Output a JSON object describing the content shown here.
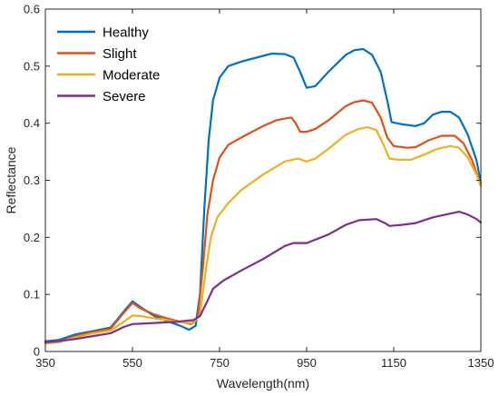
{
  "chart_data": {
    "type": "line",
    "xlabel": "Wavelength(nm)",
    "ylabel": "Reflectance",
    "xlim": [
      350,
      1350
    ],
    "ylim": [
      0,
      0.6
    ],
    "x_ticks": [
      350,
      550,
      750,
      950,
      1150,
      1350
    ],
    "y_ticks": [
      0,
      0.1,
      0.2,
      0.3,
      0.4,
      0.5,
      0.6
    ],
    "grid": false,
    "legend_position": "top-left",
    "series": [
      {
        "name": "Healthy",
        "color": "#0072BD",
        "points": [
          [
            350,
            0.018
          ],
          [
            380,
            0.02
          ],
          [
            420,
            0.03
          ],
          [
            460,
            0.036
          ],
          [
            500,
            0.042
          ],
          [
            530,
            0.07
          ],
          [
            550,
            0.088
          ],
          [
            570,
            0.077
          ],
          [
            600,
            0.062
          ],
          [
            630,
            0.053
          ],
          [
            660,
            0.045
          ],
          [
            680,
            0.038
          ],
          [
            695,
            0.045
          ],
          [
            705,
            0.1
          ],
          [
            715,
            0.25
          ],
          [
            725,
            0.37
          ],
          [
            735,
            0.44
          ],
          [
            750,
            0.48
          ],
          [
            770,
            0.5
          ],
          [
            800,
            0.508
          ],
          [
            850,
            0.518
          ],
          [
            870,
            0.522
          ],
          [
            900,
            0.521
          ],
          [
            920,
            0.515
          ],
          [
            935,
            0.49
          ],
          [
            950,
            0.462
          ],
          [
            970,
            0.465
          ],
          [
            1000,
            0.49
          ],
          [
            1040,
            0.52
          ],
          [
            1060,
            0.528
          ],
          [
            1080,
            0.53
          ],
          [
            1100,
            0.52
          ],
          [
            1120,
            0.49
          ],
          [
            1135,
            0.44
          ],
          [
            1145,
            0.402
          ],
          [
            1170,
            0.398
          ],
          [
            1200,
            0.395
          ],
          [
            1220,
            0.4
          ],
          [
            1240,
            0.415
          ],
          [
            1260,
            0.42
          ],
          [
            1280,
            0.42
          ],
          [
            1300,
            0.41
          ],
          [
            1320,
            0.38
          ],
          [
            1340,
            0.335
          ],
          [
            1350,
            0.295
          ]
        ]
      },
      {
        "name": "Slight",
        "color": "#D95319",
        "points": [
          [
            350,
            0.015
          ],
          [
            380,
            0.017
          ],
          [
            420,
            0.027
          ],
          [
            460,
            0.034
          ],
          [
            500,
            0.04
          ],
          [
            530,
            0.068
          ],
          [
            550,
            0.085
          ],
          [
            570,
            0.075
          ],
          [
            600,
            0.065
          ],
          [
            630,
            0.058
          ],
          [
            660,
            0.052
          ],
          [
            685,
            0.048
          ],
          [
            700,
            0.06
          ],
          [
            712,
            0.15
          ],
          [
            722,
            0.24
          ],
          [
            735,
            0.3
          ],
          [
            750,
            0.34
          ],
          [
            770,
            0.362
          ],
          [
            800,
            0.375
          ],
          [
            850,
            0.395
          ],
          [
            880,
            0.405
          ],
          [
            900,
            0.408
          ],
          [
            915,
            0.41
          ],
          [
            925,
            0.4
          ],
          [
            935,
            0.385
          ],
          [
            950,
            0.385
          ],
          [
            970,
            0.39
          ],
          [
            1000,
            0.405
          ],
          [
            1040,
            0.43
          ],
          [
            1060,
            0.437
          ],
          [
            1080,
            0.44
          ],
          [
            1100,
            0.436
          ],
          [
            1120,
            0.41
          ],
          [
            1135,
            0.375
          ],
          [
            1150,
            0.36
          ],
          [
            1180,
            0.357
          ],
          [
            1200,
            0.358
          ],
          [
            1230,
            0.37
          ],
          [
            1260,
            0.378
          ],
          [
            1290,
            0.378
          ],
          [
            1310,
            0.365
          ],
          [
            1330,
            0.335
          ],
          [
            1350,
            0.29
          ]
        ]
      },
      {
        "name": "Moderate",
        "color": "#EDB120",
        "points": [
          [
            350,
            0.014
          ],
          [
            380,
            0.016
          ],
          [
            420,
            0.025
          ],
          [
            460,
            0.032
          ],
          [
            500,
            0.037
          ],
          [
            530,
            0.052
          ],
          [
            550,
            0.063
          ],
          [
            570,
            0.062
          ],
          [
            600,
            0.058
          ],
          [
            630,
            0.055
          ],
          [
            660,
            0.051
          ],
          [
            690,
            0.05
          ],
          [
            705,
            0.065
          ],
          [
            718,
            0.14
          ],
          [
            730,
            0.2
          ],
          [
            745,
            0.235
          ],
          [
            770,
            0.26
          ],
          [
            800,
            0.283
          ],
          [
            850,
            0.31
          ],
          [
            900,
            0.333
          ],
          [
            930,
            0.338
          ],
          [
            950,
            0.333
          ],
          [
            970,
            0.338
          ],
          [
            1000,
            0.355
          ],
          [
            1040,
            0.38
          ],
          [
            1070,
            0.39
          ],
          [
            1090,
            0.393
          ],
          [
            1110,
            0.388
          ],
          [
            1125,
            0.365
          ],
          [
            1140,
            0.338
          ],
          [
            1160,
            0.336
          ],
          [
            1190,
            0.336
          ],
          [
            1220,
            0.345
          ],
          [
            1250,
            0.355
          ],
          [
            1280,
            0.36
          ],
          [
            1300,
            0.357
          ],
          [
            1320,
            0.34
          ],
          [
            1340,
            0.31
          ],
          [
            1350,
            0.29
          ]
        ]
      },
      {
        "name": "Severe",
        "color": "#7E2F8E",
        "points": [
          [
            350,
            0.016
          ],
          [
            380,
            0.018
          ],
          [
            420,
            0.022
          ],
          [
            460,
            0.027
          ],
          [
            500,
            0.032
          ],
          [
            530,
            0.043
          ],
          [
            550,
            0.048
          ],
          [
            600,
            0.05
          ],
          [
            650,
            0.052
          ],
          [
            690,
            0.055
          ],
          [
            705,
            0.062
          ],
          [
            720,
            0.085
          ],
          [
            735,
            0.11
          ],
          [
            760,
            0.125
          ],
          [
            800,
            0.142
          ],
          [
            850,
            0.162
          ],
          [
            900,
            0.185
          ],
          [
            920,
            0.19
          ],
          [
            950,
            0.19
          ],
          [
            1000,
            0.205
          ],
          [
            1040,
            0.222
          ],
          [
            1070,
            0.23
          ],
          [
            1110,
            0.232
          ],
          [
            1130,
            0.225
          ],
          [
            1140,
            0.22
          ],
          [
            1170,
            0.222
          ],
          [
            1200,
            0.225
          ],
          [
            1240,
            0.235
          ],
          [
            1270,
            0.24
          ],
          [
            1300,
            0.245
          ],
          [
            1320,
            0.24
          ],
          [
            1340,
            0.232
          ],
          [
            1350,
            0.226
          ]
        ]
      }
    ]
  }
}
